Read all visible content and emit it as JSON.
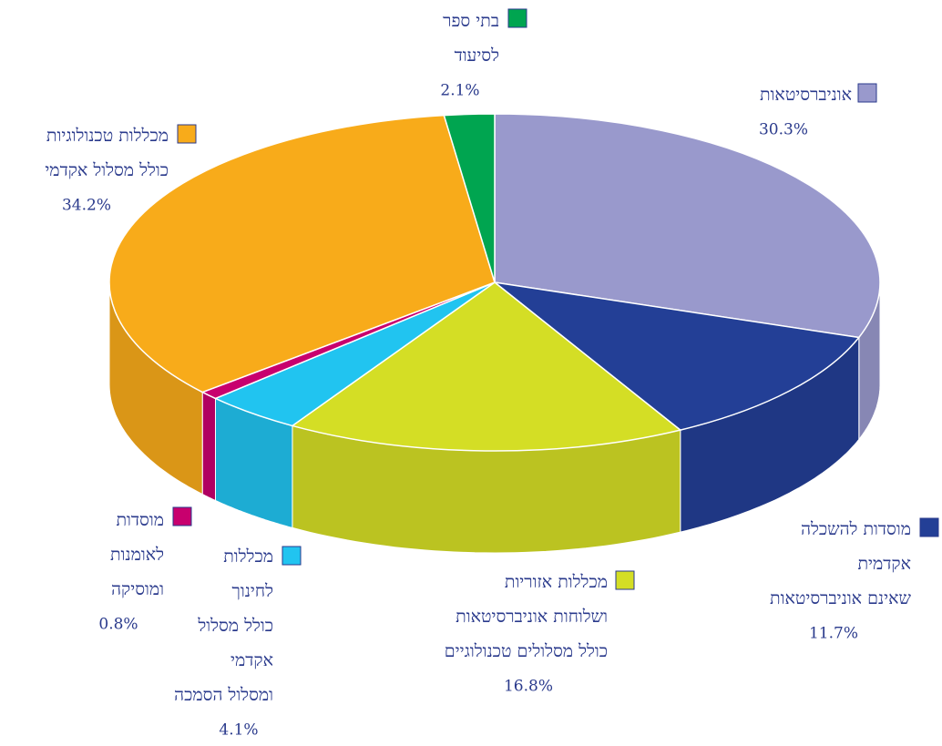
{
  "chart_data": {
    "type": "pie",
    "categories": [
      [
        "אוניברסיטאות"
      ],
      [
        "מוסדות להשכלה",
        "אקדמית",
        "שאינם אוניברסיטאות"
      ],
      [
        "מכללות אזוריות",
        "ושלוחות אוניברסיטאות",
        "כולל מסלולים טכנולוגיים"
      ],
      [
        "מכללות",
        "לחינוך",
        "כולל מסלול",
        "אקדמי",
        "ומסלול הסמכה"
      ],
      [
        "מוסדות",
        "לאומנות",
        "ומוסיקה"
      ],
      [
        "מכללות טכנולוגיות",
        "כולל מסלול אקדמי"
      ],
      [
        "בתי ספר",
        "לסיעוד"
      ]
    ],
    "values": [
      30.3,
      11.7,
      16.8,
      4.1,
      0.8,
      34.2,
      2.1
    ],
    "value_labels": [
      "30.3%",
      "11.7%",
      "16.8%",
      "4.1%",
      "0.8%",
      "34.2%",
      "2.1%"
    ],
    "colors": [
      "#9999cc",
      "#233f96",
      "#d4de25",
      "#21c4f0",
      "#c8006e",
      "#f8ab1a",
      "#00a550"
    ]
  }
}
